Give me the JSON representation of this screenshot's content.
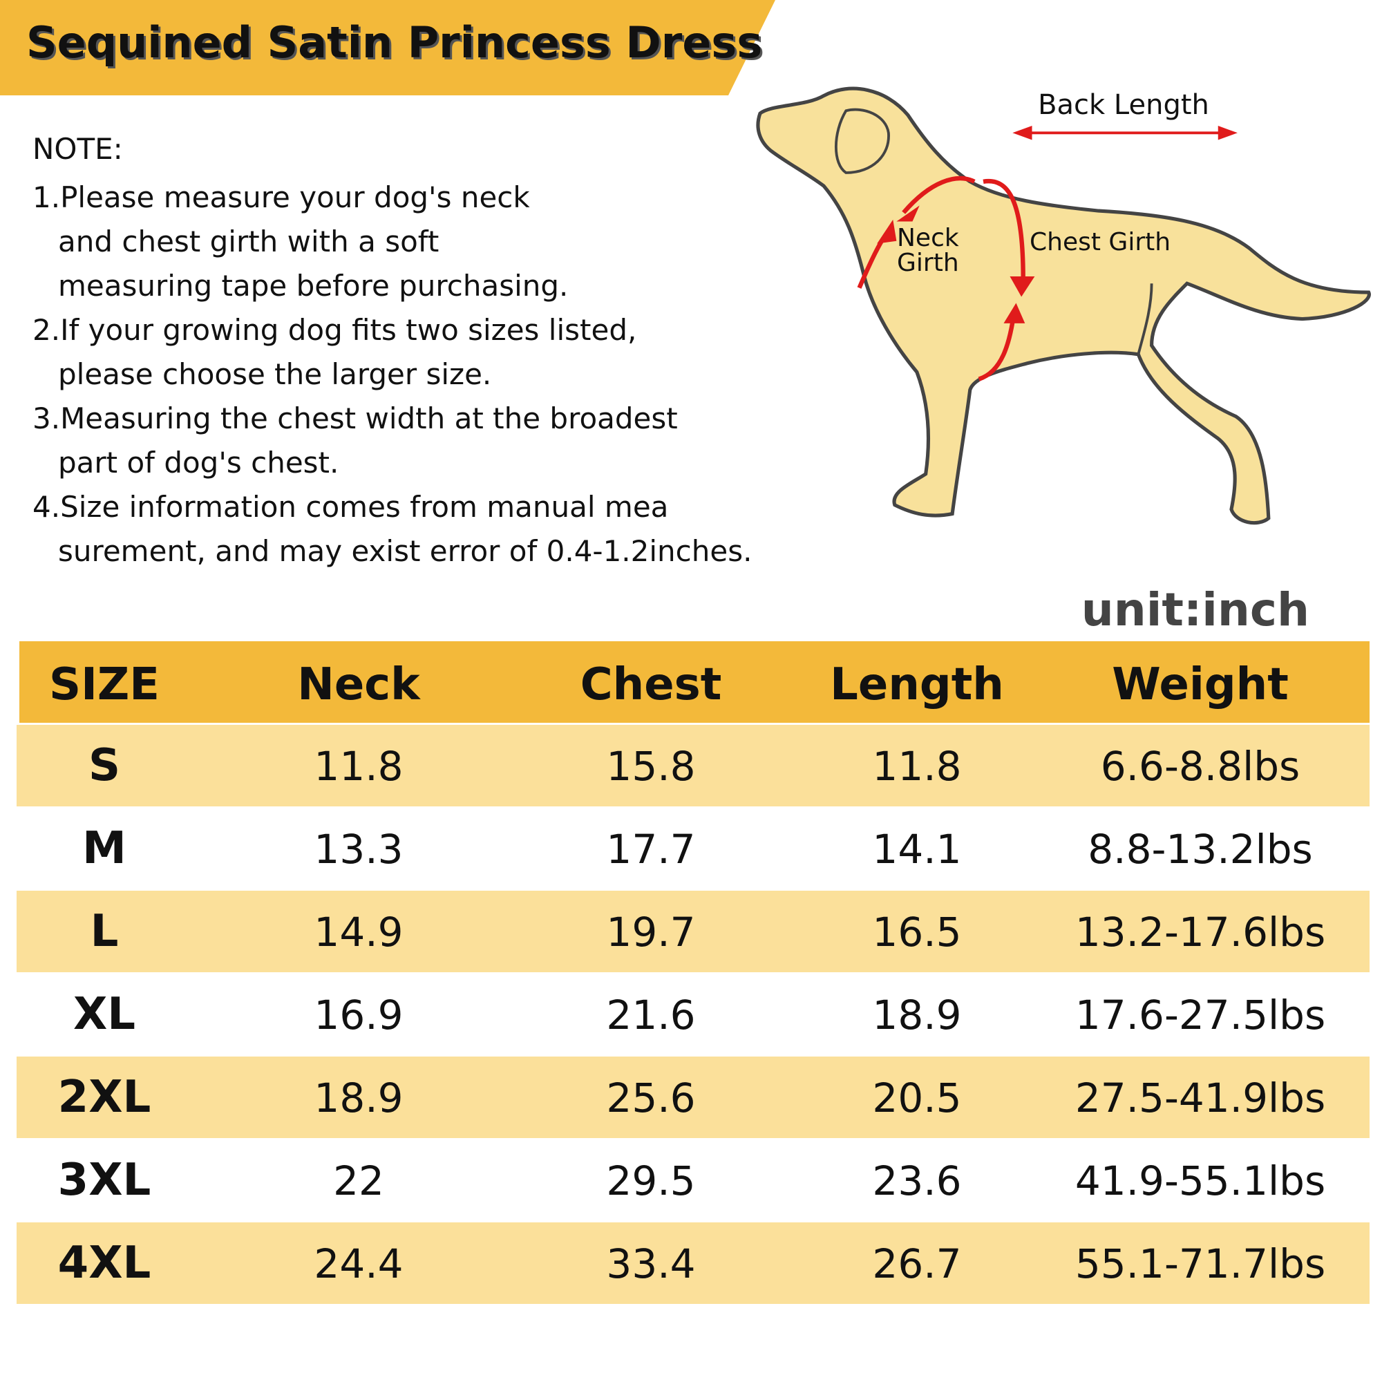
{
  "header": {
    "title": "Sequined Satin Princess Dress"
  },
  "note": {
    "heading": "NOTE:",
    "lines": [
      "1.Please measure your dog's neck",
      "and chest girth with a soft",
      "measuring tape before purchasing.",
      "2.If your growing dog fits two sizes listed,",
      "please choose the larger size.",
      "3.Measuring the chest width at the broadest",
      "part of dog's chest.",
      "4.Size information comes from manual mea",
      "surement, and may exist error of 0.4-1.2inches."
    ]
  },
  "diagram": {
    "back_length": "Back Length",
    "neck_girth": [
      "Neck",
      "Girth"
    ],
    "chest_girth": "Chest Girth"
  },
  "unit": "unit:inch",
  "table": {
    "header": [
      "SIZE",
      "Neck",
      "Chest",
      "Length",
      "Weight"
    ],
    "rows": [
      [
        "S",
        "11.8",
        "15.8",
        "11.8",
        "6.6-8.8lbs"
      ],
      [
        "M",
        "13.3",
        "17.7",
        "14.1",
        "8.8-13.2lbs"
      ],
      [
        "L",
        "14.9",
        "19.7",
        "16.5",
        "13.2-17.6lbs"
      ],
      [
        "XL",
        "16.9",
        "21.6",
        "18.9",
        "17.6-27.5lbs"
      ],
      [
        "2XL",
        "18.9",
        "25.6",
        "20.5",
        "27.5-41.9lbs"
      ],
      [
        "3XL",
        "22",
        "29.5",
        "23.6",
        "41.9-55.1lbs"
      ],
      [
        "4XL",
        "24.4",
        "33.4",
        "26.7",
        "55.1-71.7lbs"
      ]
    ]
  }
}
